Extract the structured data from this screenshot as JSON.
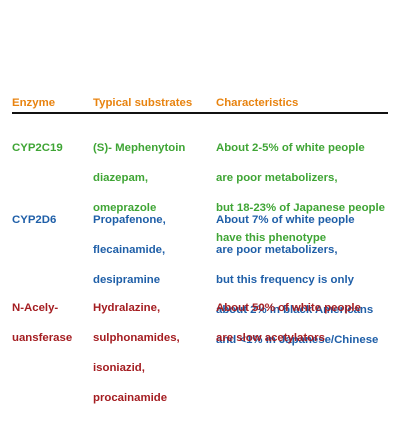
{
  "table": {
    "headers": {
      "enzyme": "Enzyme",
      "substrates": "Typical substrates",
      "characteristics": "Characteristics"
    },
    "header_color": "#e8830f",
    "rows": [
      {
        "color": "#3fa535",
        "enzyme": [
          "CYP2C19"
        ],
        "substrates": [
          "(S)- Mephenytoin",
          "diazepam,",
          "omeprazole"
        ],
        "characteristics": [
          "About 2-5% of white people",
          "are poor metabolizers,",
          "but 18-23% of Japanese people",
          "have this phenotype"
        ]
      },
      {
        "color": "#1f5fa8",
        "enzyme": [
          "CYP2D6"
        ],
        "substrates": [
          "Propafenone,",
          "flecainamide,",
          "desipramine"
        ],
        "characteristics": [
          "About 7% of white people",
          "are poor metabolizers,",
          "but this frequency is only",
          "about 2% in black Americans",
          "and <1% in Japanese/Chinese"
        ]
      },
      {
        "color": "#a41d21",
        "enzyme": [
          "N-Acely-",
          "uansferase"
        ],
        "substrates": [
          "Hydralazine,",
          "sulphonamides,",
          "isoniazid,",
          "procainamide"
        ],
        "characteristics": [
          "About  50% of white people",
          "are slow acetylators"
        ]
      }
    ]
  }
}
